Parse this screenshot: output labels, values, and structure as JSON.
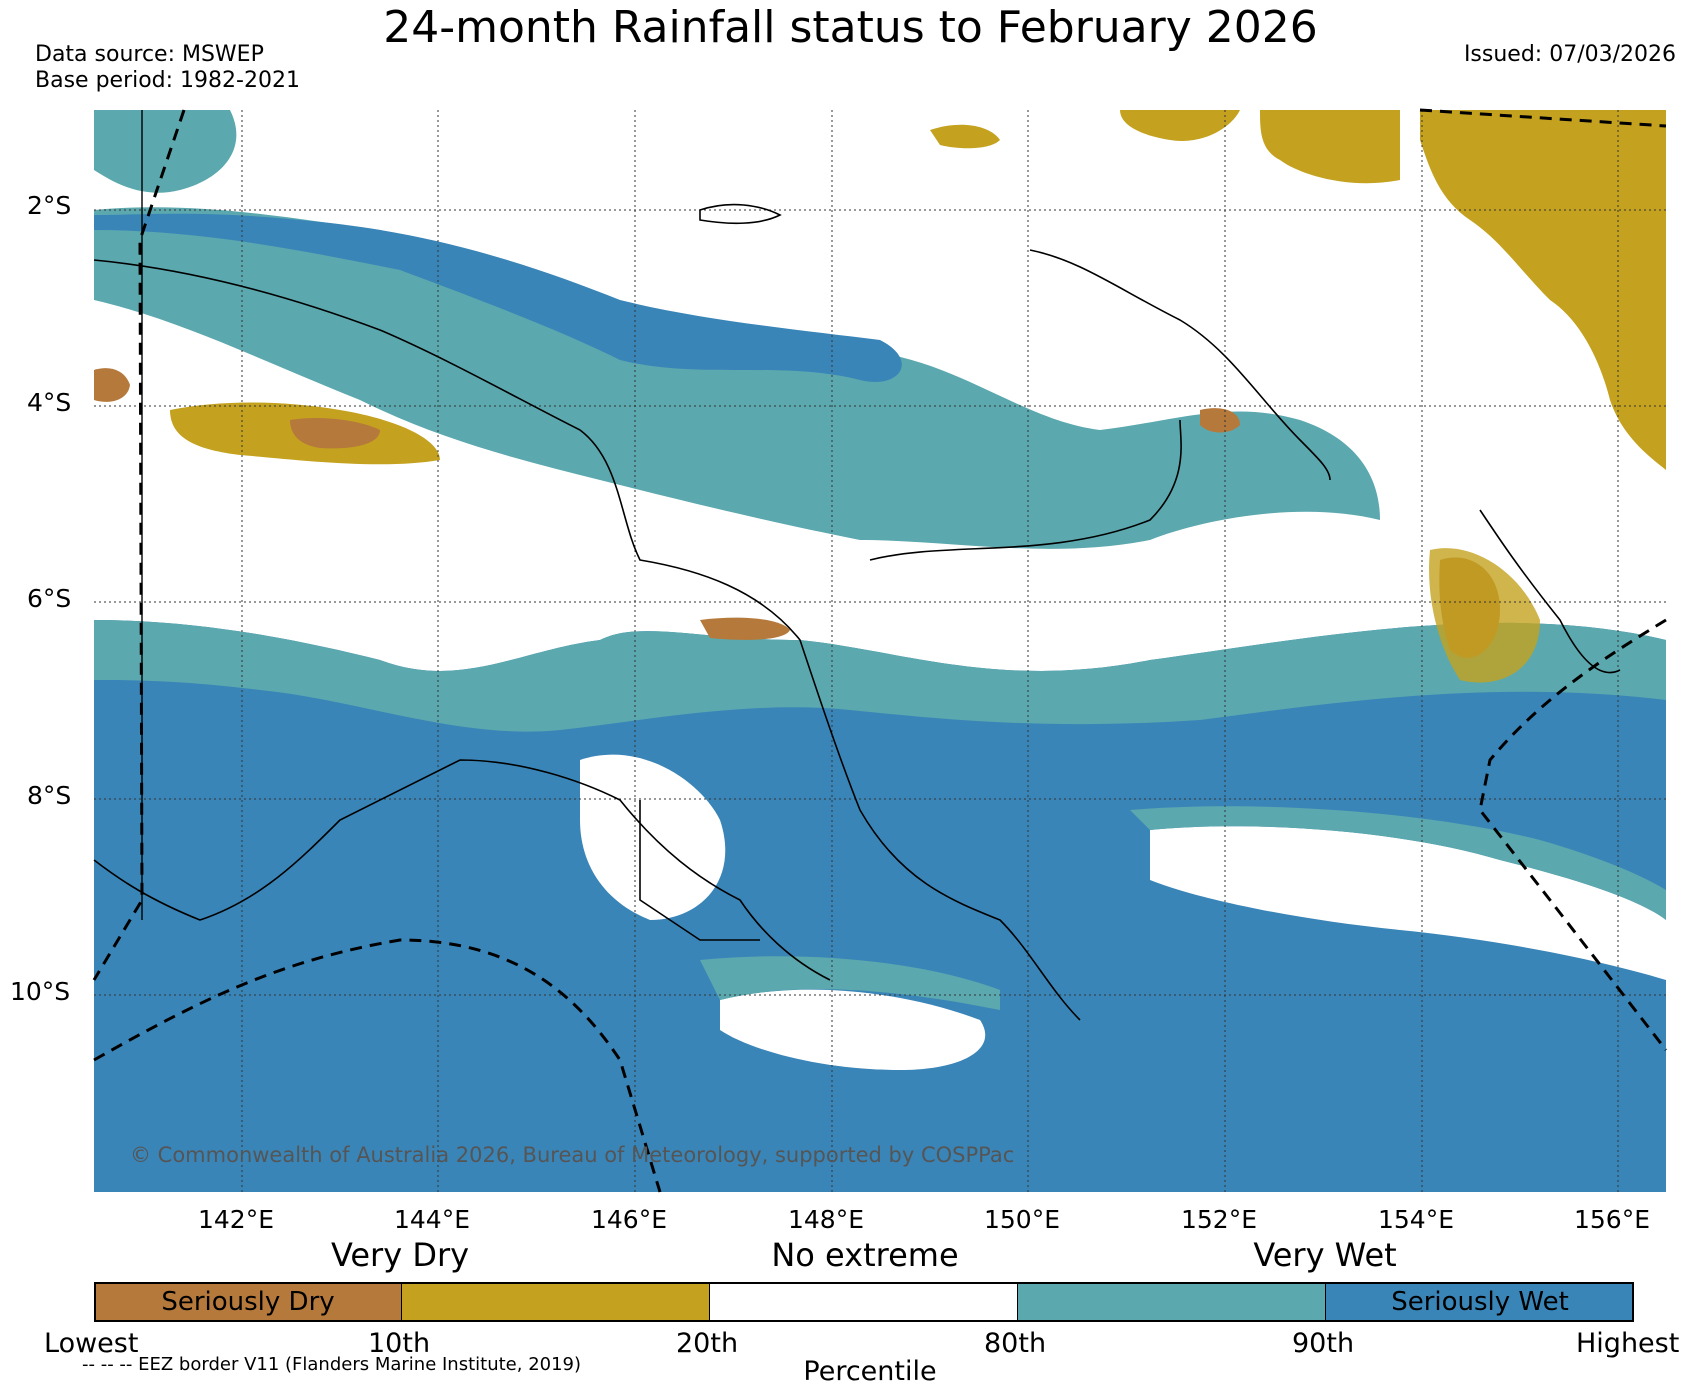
{
  "title": "24-month Rainfall status to February 2026",
  "data_source": "Data source: MSWEP",
  "base_period": "Base period: 1982-2021",
  "issued": "Issued: 07/03/2026",
  "copyright": "© Commonwealth of Australia 2026, Bureau of Meteorology, supported by COSPPac",
  "eez_note": "-- -- -- EEZ border V11 (Flanders Marine Institute, 2019)",
  "axes": {
    "lat_labels": [
      "2°S",
      "4°S",
      "6°S",
      "8°S",
      "10°S"
    ],
    "lon_labels": [
      "142°E",
      "144°E",
      "146°E",
      "148°E",
      "150°E",
      "152°E",
      "154°E",
      "156°E"
    ]
  },
  "legend": {
    "categories": [
      "Very Dry",
      "No extreme",
      "Very Wet"
    ],
    "segments": [
      {
        "label": "Seriously Dry",
        "color": "#b5793b"
      },
      {
        "label": "",
        "color": "#c4a21f"
      },
      {
        "label": "",
        "color": "#ffffff"
      },
      {
        "label": "",
        "color": "#5ba8ae"
      },
      {
        "label": "Seriously Wet",
        "color": "#3a85b8"
      }
    ],
    "percentile_ticks": [
      "Lowest",
      "10th",
      "20th",
      "80th",
      "90th",
      "Highest"
    ],
    "axis_label": "Percentile"
  },
  "colors": {
    "seriously_dry": "#b5793b",
    "very_dry": "#c4a21f",
    "no_extreme": "#ffffff",
    "very_wet": "#5ba8ae",
    "seriously_wet": "#3a85b8"
  }
}
